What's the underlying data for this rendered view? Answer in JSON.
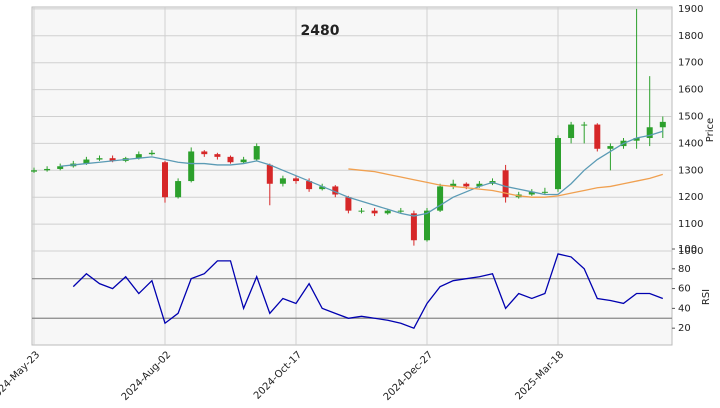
{
  "chart_data": {
    "type": "candlestick",
    "title": "2480",
    "ylabel": "Price",
    "categories": [
      "2024-May-23",
      null,
      null,
      null,
      null,
      null,
      null,
      null,
      null,
      null,
      "2024-Aug-02",
      null,
      null,
      null,
      null,
      null,
      null,
      null,
      null,
      null,
      "2024-Oct-17",
      null,
      null,
      null,
      null,
      null,
      null,
      null,
      null,
      null,
      "2024-Dec-27",
      null,
      null,
      null,
      null,
      null,
      null,
      null,
      null,
      null,
      "2025-Mar-18",
      null,
      null,
      null,
      null,
      null,
      null,
      null,
      null
    ],
    "open": [
      1295,
      1300,
      1305,
      1315,
      1325,
      1340,
      1345,
      1335,
      1345,
      1360,
      1330,
      1200,
      1260,
      1370,
      1360,
      1350,
      1330,
      1340,
      1320,
      1250,
      1270,
      1260,
      1230,
      1240,
      1200,
      1150,
      1150,
      1140,
      1150,
      1140,
      1040,
      1150,
      1240,
      1250,
      1240,
      1250,
      1300,
      1200,
      1210,
      1220,
      1230,
      1420,
      1470,
      1470,
      1380,
      1390,
      1410,
      1420,
      1460
    ],
    "high": [
      1310,
      1315,
      1325,
      1335,
      1350,
      1355,
      1355,
      1350,
      1370,
      1375,
      1335,
      1270,
      1385,
      1375,
      1365,
      1355,
      1350,
      1400,
      1325,
      1280,
      1280,
      1270,
      1250,
      1245,
      1205,
      1160,
      1160,
      1155,
      1160,
      1150,
      1160,
      1250,
      1265,
      1255,
      1260,
      1270,
      1320,
      1220,
      1230,
      1235,
      1430,
      1480,
      1480,
      1475,
      1400,
      1420,
      1900,
      1650,
      1500
    ],
    "low": [
      1290,
      1295,
      1300,
      1310,
      1320,
      1335,
      1330,
      1330,
      1340,
      1355,
      1180,
      1195,
      1255,
      1350,
      1340,
      1325,
      1325,
      1335,
      1170,
      1240,
      1250,
      1220,
      1225,
      1200,
      1140,
      1140,
      1130,
      1135,
      1140,
      1020,
      1035,
      1145,
      1230,
      1230,
      1235,
      1245,
      1180,
      1195,
      1205,
      1210,
      1220,
      1400,
      1400,
      1370,
      1300,
      1380,
      1380,
      1390,
      1420
    ],
    "close": [
      1300,
      1305,
      1315,
      1325,
      1340,
      1345,
      1335,
      1345,
      1360,
      1365,
      1200,
      1260,
      1370,
      1360,
      1350,
      1330,
      1340,
      1390,
      1250,
      1270,
      1260,
      1230,
      1240,
      1210,
      1150,
      1150,
      1140,
      1150,
      1150,
      1040,
      1150,
      1240,
      1250,
      1240,
      1250,
      1260,
      1200,
      1210,
      1220,
      1220,
      1420,
      1470,
      1470,
      1380,
      1390,
      1410,
      1420,
      1460,
      1480
    ],
    "up_color": "#2ca02c",
    "down_color": "#d62728",
    "overlays": [
      {
        "color": "#5b9bb5",
        "values": [
          null,
          null,
          1315,
          1320,
          1325,
          1330,
          1335,
          1340,
          1345,
          1350,
          1340,
          1330,
          1325,
          1325,
          1320,
          1320,
          1325,
          1335,
          1320,
          1300,
          1280,
          1260,
          1240,
          1220,
          1200,
          1185,
          1170,
          1155,
          1140,
          1130,
          1140,
          1170,
          1200,
          1220,
          1240,
          1255,
          1240,
          1230,
          1220,
          1210,
          1210,
          1250,
          1300,
          1340,
          1370,
          1400,
          1420,
          1430,
          1445
        ]
      },
      {
        "color": "#f0a050",
        "values": [
          null,
          null,
          null,
          null,
          null,
          null,
          null,
          null,
          null,
          null,
          null,
          null,
          null,
          null,
          null,
          null,
          null,
          null,
          null,
          null,
          null,
          null,
          null,
          null,
          1305,
          1300,
          1295,
          1285,
          1275,
          1265,
          1255,
          1245,
          1240,
          1235,
          1230,
          1225,
          1215,
          1205,
          1200,
          1200,
          1205,
          1215,
          1225,
          1235,
          1240,
          1250,
          1260,
          1270,
          1285
        ]
      }
    ],
    "ylim": [
      974,
      1907
    ],
    "yticks": [
      1000,
      1100,
      1200,
      1300,
      1400,
      1500,
      1600,
      1700,
      1800,
      1900
    ],
    "grid": true,
    "rsi": {
      "label": "RSI",
      "color": "#0000b0",
      "values": [
        null,
        null,
        null,
        62,
        75,
        65,
        60,
        72,
        55,
        68,
        25,
        35,
        70,
        75,
        88,
        88,
        40,
        72,
        35,
        50,
        45,
        65,
        40,
        35,
        30,
        32,
        30,
        28,
        25,
        20,
        45,
        62,
        68,
        70,
        72,
        75,
        40,
        55,
        50,
        55,
        95,
        92,
        80,
        50,
        48,
        45,
        55,
        55,
        50
      ],
      "ylim": [
        3,
        100
      ],
      "yticks": [
        20,
        40,
        60,
        80,
        100
      ],
      "bands": [
        30,
        70
      ]
    }
  }
}
